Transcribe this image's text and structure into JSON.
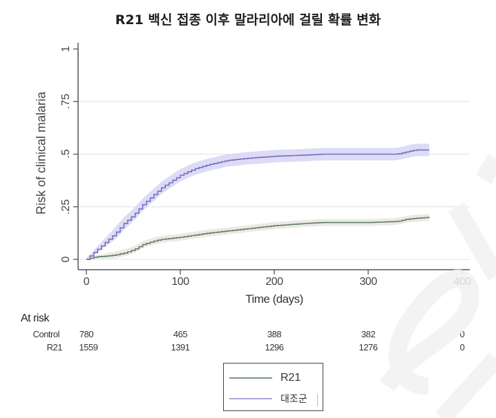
{
  "title": "R21 백신 접종 이후 말라리아에 걸릴 확률 변화",
  "axes": {
    "ylabel": "Risk of clinical malaria",
    "xlabel": "Time (days)",
    "yticks": [
      "0",
      ".25",
      ".5",
      ".75",
      "1"
    ],
    "xticks": [
      "0",
      "100",
      "200",
      "300",
      "400"
    ]
  },
  "at_risk": {
    "title": "At risk",
    "rows": [
      {
        "label": "Control",
        "values": [
          "780",
          "465",
          "388",
          "382",
          "0"
        ]
      },
      {
        "label": "R21",
        "values": [
          "1559",
          "1391",
          "1296",
          "1276",
          "0"
        ]
      }
    ]
  },
  "legend": {
    "items": [
      {
        "label": "R21",
        "color": "#5f7f6c"
      },
      {
        "label": "대조군",
        "color": "#8a86cc"
      }
    ]
  },
  "colors": {
    "r21_line": "#5f7f6c",
    "r21_band": "#ece5e0",
    "control_line": "#7670c2",
    "control_band": "#d9d7f5",
    "gridline": "#e6e6ea",
    "axis": "#555555"
  },
  "chart_data": {
    "type": "line",
    "title": "R21 백신 접종 이후 말라리아에 걸릴 확률 변화",
    "xlabel": "Time (days)",
    "ylabel": "Risk of clinical malaria",
    "xlim": [
      0,
      400
    ],
    "ylim": [
      0,
      1
    ],
    "xticks": [
      0,
      100,
      200,
      300,
      400
    ],
    "yticks": [
      0,
      0.25,
      0.5,
      0.75,
      1
    ],
    "grid": true,
    "legend_position": "bottom-center",
    "x": [
      0,
      10,
      20,
      30,
      40,
      50,
      60,
      70,
      80,
      90,
      100,
      115,
      130,
      150,
      170,
      200,
      230,
      250,
      300,
      330,
      340,
      350,
      365
    ],
    "series": [
      {
        "name": "대조군",
        "values": [
          0,
          0.04,
          0.08,
          0.12,
          0.17,
          0.21,
          0.26,
          0.3,
          0.34,
          0.37,
          0.4,
          0.43,
          0.45,
          0.47,
          0.48,
          0.49,
          0.495,
          0.5,
          0.5,
          0.5,
          0.51,
          0.52,
          0.52
        ],
        "ci_band": true
      },
      {
        "name": "R21",
        "values": [
          0,
          0.012,
          0.015,
          0.02,
          0.03,
          0.045,
          0.07,
          0.085,
          0.095,
          0.1,
          0.105,
          0.115,
          0.125,
          0.135,
          0.145,
          0.16,
          0.17,
          0.175,
          0.175,
          0.18,
          0.19,
          0.195,
          0.2
        ],
        "ci_band": true
      }
    ],
    "at_risk_table": {
      "timepoints": [
        0,
        100,
        200,
        300,
        400
      ],
      "Control": [
        780,
        465,
        388,
        382,
        0
      ],
      "R21": [
        1559,
        1391,
        1296,
        1276,
        0
      ]
    }
  }
}
